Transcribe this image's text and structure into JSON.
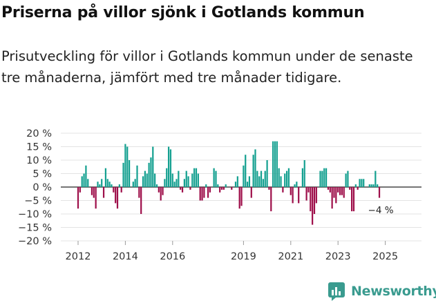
{
  "title": "Priserna på villor sjönk i Gotlands kommun",
  "subtitle": "Prisutveckling för villor i Gotlands kommun under de senaste tre månaderna, jämfört med tre månader tidigare.",
  "brand": {
    "name": "Newsworthy"
  },
  "colors": {
    "positive": "#14a090",
    "negative": "#9e0f4a",
    "grid": "#e3e3e3",
    "text": "#333333"
  },
  "chart_data": {
    "type": "bar",
    "title": "Priserna på villor sjönk i Gotlands kommun",
    "ylabel": "",
    "xlabel": "",
    "ylim": [
      -20,
      20
    ],
    "y_ticks": [
      "20 %",
      "15 %",
      "10 %",
      "5 %",
      "0 %",
      "−5 %",
      "−10 %",
      "−15 %",
      "−20 %"
    ],
    "y_tick_values": [
      20,
      15,
      10,
      5,
      0,
      -5,
      -10,
      -15,
      -20
    ],
    "x_ticks": [
      "2012",
      "2014",
      "2016",
      "2019",
      "2021",
      "2023",
      "2025"
    ],
    "x_tick_values": [
      2012.0,
      2014.0,
      2016.0,
      2019.0,
      2021.0,
      2023.0,
      2025.0
    ],
    "x_start": 2012.0,
    "step": 0.08333,
    "last_label": "−4 %",
    "values": [
      -8,
      -2,
      4,
      5,
      8,
      3,
      0,
      -3,
      -4,
      -8,
      2,
      1,
      3,
      -4,
      7,
      3,
      2,
      1,
      -2,
      -6,
      -8,
      1,
      -2,
      9,
      16,
      15,
      10,
      0,
      2,
      3,
      8,
      -4,
      -10,
      4,
      6,
      5,
      9,
      11,
      15,
      5,
      1,
      -2,
      -5,
      -3,
      3,
      7,
      15,
      14,
      5,
      2,
      3,
      6,
      -1,
      -2,
      3,
      6,
      4,
      -1,
      5,
      7,
      7,
      5,
      -5,
      -5,
      -4,
      1,
      -4,
      -2,
      0,
      7,
      6,
      1,
      -2,
      -1,
      -1,
      1,
      0,
      0,
      -1,
      0,
      2,
      4,
      -8,
      -7,
      8,
      12,
      2,
      4,
      -4,
      12,
      14,
      6,
      4,
      6,
      3,
      6,
      10,
      -1,
      -9,
      17,
      17,
      17,
      7,
      4,
      -2,
      5,
      6,
      7,
      -3,
      -6,
      1,
      2,
      -6,
      0,
      7,
      10,
      -5,
      -2,
      -9,
      -14,
      -10,
      -6,
      0,
      6,
      6,
      7,
      7,
      -1,
      -2,
      -8,
      -4,
      -6,
      -2,
      -3,
      -3,
      -4,
      5,
      6,
      -1,
      -9,
      -9,
      1,
      -1,
      3,
      3,
      3,
      0,
      0,
      1,
      1,
      1,
      6,
      1,
      -4
    ]
  }
}
